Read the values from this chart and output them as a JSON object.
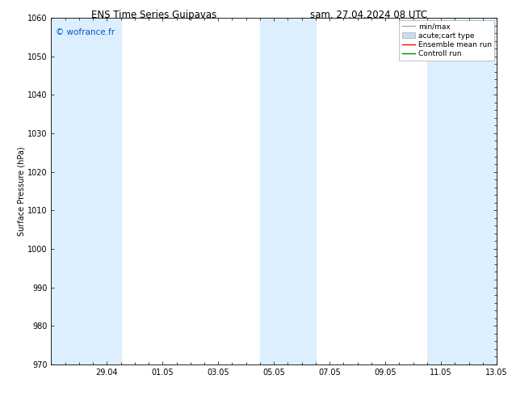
{
  "title_left": "ENS Time Series Guipavas",
  "title_right": "sam. 27.04.2024 08 UTC",
  "ylabel": "Surface Pressure (hPa)",
  "ylim": [
    970,
    1060
  ],
  "yticks": [
    970,
    980,
    990,
    1000,
    1010,
    1020,
    1030,
    1040,
    1050,
    1060
  ],
  "xtick_labels": [
    "29.04",
    "01.05",
    "03.05",
    "05.05",
    "07.05",
    "09.05",
    "11.05",
    "13.05"
  ],
  "xtick_positions": [
    2,
    4,
    6,
    8,
    10,
    12,
    14,
    16
  ],
  "xlim": [
    0,
    16
  ],
  "shaded_bands": [
    {
      "xmin": 0.0,
      "xmax": 2.5
    },
    {
      "xmin": 7.5,
      "xmax": 9.5
    },
    {
      "xmin": 13.5,
      "xmax": 16.0
    }
  ],
  "shaded_color": "#ddeeff",
  "watermark": "© wofrance.fr",
  "watermark_color": "#0055cc",
  "legend_labels": [
    "min/max",
    "acute;cart type",
    "Ensemble mean run",
    "Controll run"
  ],
  "background_color": "#ffffff",
  "title_fontsize": 8.5,
  "axis_fontsize": 7,
  "tick_fontsize": 7,
  "legend_fontsize": 6.5,
  "watermark_fontsize": 7.5
}
